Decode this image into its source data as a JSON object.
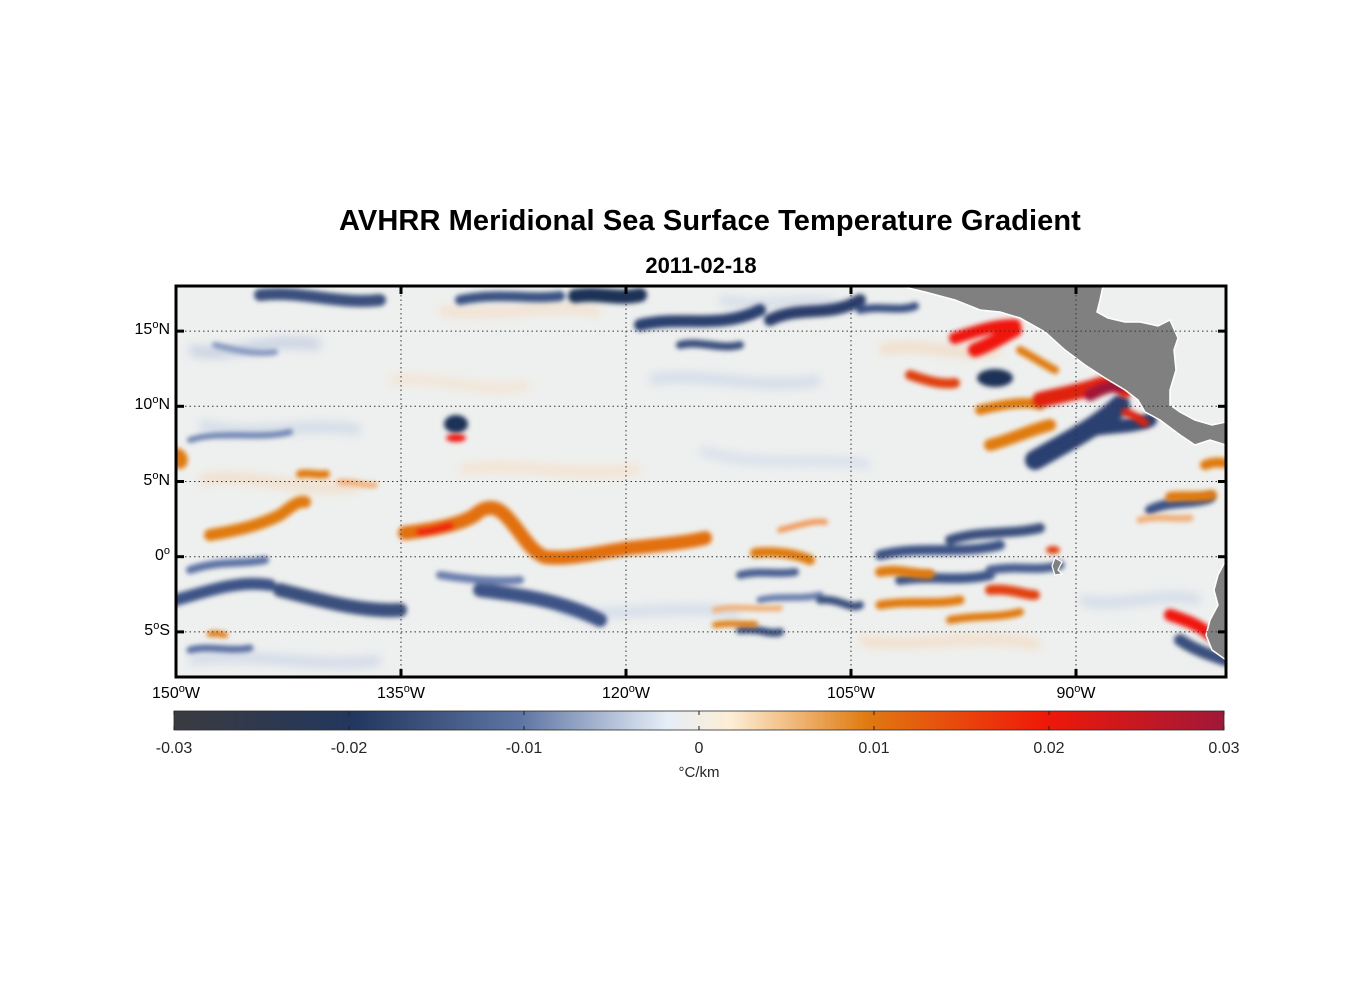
{
  "map": {
    "title": "AVHRR Meridional Sea Surface Temperature Gradient",
    "subtitle": "2011-02-18",
    "extent": {
      "lon": [
        -150,
        -80
      ],
      "lat": [
        -8,
        18
      ]
    },
    "lat_ticks": [
      {
        "value": 15,
        "num": "15",
        "hemi": "N"
      },
      {
        "value": 10,
        "num": "10",
        "hemi": "N"
      },
      {
        "value": 5,
        "num": "5",
        "hemi": "N"
      },
      {
        "value": 0,
        "num": "0",
        "hemi": ""
      },
      {
        "value": -5,
        "num": "5",
        "hemi": "S"
      }
    ],
    "lon_ticks": [
      {
        "value": -150,
        "num": "150",
        "hemi": "W"
      },
      {
        "value": -135,
        "num": "135",
        "hemi": "W"
      },
      {
        "value": -120,
        "num": "120",
        "hemi": "W"
      },
      {
        "value": -105,
        "num": "105",
        "hemi": "W"
      },
      {
        "value": -90,
        "num": "90",
        "hemi": "W"
      }
    ],
    "degree_symbol": "o",
    "colors": {
      "land": "#808080",
      "frame": "#000000",
      "ocean_base": "#eef0ef"
    }
  },
  "colorbar": {
    "ticks": [
      "-0.03",
      "-0.02",
      "-0.01",
      "0",
      "0.01",
      "0.02",
      "0.03"
    ],
    "range": [
      -0.03,
      0.03
    ],
    "unit": "°C/km",
    "stops": [
      "#3b3b40",
      "#22375e",
      "#5e75a3",
      "#e6eef7",
      "#fdeed6",
      "#e07a10",
      "#f01808",
      "#a01838"
    ]
  }
}
